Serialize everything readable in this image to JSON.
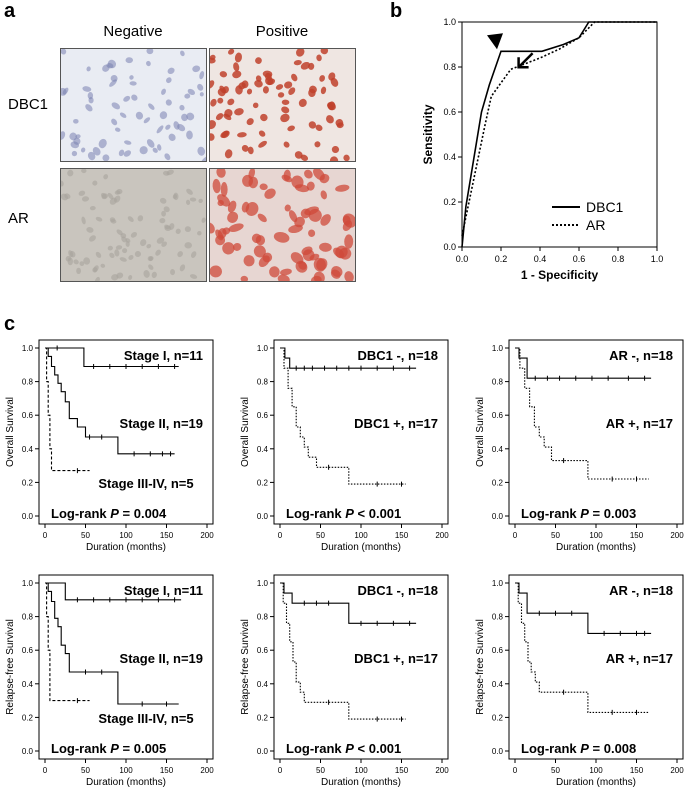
{
  "panels": {
    "a": {
      "letter": "a",
      "columns": [
        "Negative",
        "Positive"
      ],
      "rows": [
        "DBC1",
        "AR"
      ]
    },
    "b": {
      "letter": "b"
    },
    "c": {
      "letter": "c"
    }
  },
  "colors": {
    "negative_bg": "#e9ecf3",
    "negative_nuclei": "#7a82b0",
    "positive_bg": "#efe6e2",
    "positive_nuclei": "#c0412b",
    "ar_neg_bg": "#c9c5be",
    "ar_neg_cell": "#a8a49c",
    "ar_pos_bg": "#e7d6d2",
    "ar_pos_cell": "#cf4a3a"
  },
  "chart_data": [
    {
      "id": "roc",
      "type": "line",
      "xlabel": "1 - Specificity",
      "ylabel": "Sensitivity",
      "xlim": [
        0,
        1
      ],
      "ylim": [
        0,
        1
      ],
      "xticks": [
        "0.0",
        "0.2",
        "0.4",
        "0.6",
        "0.8",
        "1.0"
      ],
      "yticks": [
        "0.0",
        "0.2",
        "0.4",
        "0.6",
        "0.8",
        "1.0"
      ],
      "legend": "bottom-right",
      "series": [
        {
          "name": "DBC1",
          "style": "solid",
          "x": [
            0,
            0.02,
            0.1,
            0.14,
            0.2,
            0.41,
            0.52,
            0.6,
            0.65,
            1.0
          ],
          "y": [
            0,
            0.18,
            0.6,
            0.72,
            0.87,
            0.87,
            0.9,
            0.93,
            1.0,
            1.0
          ]
        },
        {
          "name": "AR",
          "style": "dotted",
          "x": [
            0,
            0.06,
            0.12,
            0.15,
            0.25,
            0.4,
            0.5,
            0.6,
            0.68,
            1.0
          ],
          "y": [
            0.05,
            0.3,
            0.55,
            0.67,
            0.79,
            0.84,
            0.88,
            0.93,
            1.0,
            1.0
          ]
        }
      ],
      "annotations": [
        "arrowhead DBC1",
        "arrow AR"
      ]
    },
    {
      "id": "os_stage",
      "type": "line",
      "xlabel": "Duration (months)",
      "ylabel": "Overall Survival",
      "xlim": [
        0,
        200
      ],
      "ylim": [
        0,
        1
      ],
      "xticks": [
        "0",
        "50",
        "100",
        "150",
        "200"
      ],
      "yticks": [
        "0.0",
        "0.2",
        "0.4",
        "0.6",
        "0.8",
        "1.0"
      ],
      "logrank_prefix": "Log-rank ",
      "logrank_p": "P",
      "logrank_val": " = 0.004",
      "series": [
        {
          "name": "Stage I, n=11",
          "style": "solid",
          "x": [
            0,
            48,
            48,
            165
          ],
          "y": [
            1.0,
            1.0,
            0.89,
            0.89
          ],
          "censor_x": [
            15,
            60,
            80,
            100,
            120,
            140,
            160
          ],
          "label_pos": "upper-right"
        },
        {
          "name": "Stage II, n=19",
          "style": "solid",
          "x": [
            0,
            4,
            8,
            12,
            16,
            20,
            25,
            30,
            40,
            50,
            60,
            90,
            100,
            160
          ],
          "y": [
            1.0,
            0.95,
            0.89,
            0.84,
            0.79,
            0.74,
            0.68,
            0.58,
            0.53,
            0.47,
            0.47,
            0.37,
            0.37,
            0.37
          ],
          "censor_x": [
            55,
            70,
            110,
            130,
            145,
            155
          ],
          "label_pos": "middle-right"
        },
        {
          "name": "Stage III-IV, n=5",
          "style": "dashed",
          "x": [
            0,
            2,
            4,
            6,
            8,
            55
          ],
          "y": [
            1.0,
            0.8,
            0.6,
            0.4,
            0.27,
            0.27
          ],
          "censor_x": [
            40
          ],
          "label_pos": "bottom-center"
        }
      ]
    },
    {
      "id": "os_dbc1",
      "type": "line",
      "xlabel": "Duration (months)",
      "ylabel": "Overall Survival",
      "xlim": [
        0,
        200
      ],
      "ylim": [
        0,
        1
      ],
      "xticks": [
        "0",
        "50",
        "100",
        "150",
        "200"
      ],
      "yticks": [
        "0.0",
        "0.2",
        "0.4",
        "0.6",
        "0.8",
        "1.0"
      ],
      "logrank_prefix": "Log-rank ",
      "logrank_p": "P",
      "logrank_val": " < 0.001",
      "series": [
        {
          "name": "DBC1 -, n=18",
          "style": "solid",
          "x": [
            0,
            6,
            6,
            12,
            12,
            168
          ],
          "y": [
            1.0,
            1.0,
            0.94,
            0.94,
            0.88,
            0.88
          ],
          "censor_x": [
            20,
            30,
            40,
            55,
            70,
            85,
            100,
            120,
            140,
            160
          ],
          "label_pos": "upper-right"
        },
        {
          "name": "DBC1 +, n=17",
          "style": "dotted",
          "x": [
            0,
            5,
            10,
            15,
            20,
            25,
            30,
            35,
            45,
            85,
            155
          ],
          "y": [
            1.0,
            0.88,
            0.76,
            0.65,
            0.53,
            0.47,
            0.41,
            0.35,
            0.29,
            0.19,
            0.19
          ],
          "censor_x": [
            60,
            120,
            150
          ],
          "label_pos": "middle-right"
        }
      ]
    },
    {
      "id": "os_ar",
      "type": "line",
      "xlabel": "Duration (months)",
      "ylabel": "Overall Survival",
      "xlim": [
        0,
        200
      ],
      "ylim": [
        0,
        1
      ],
      "xticks": [
        "0",
        "50",
        "100",
        "150",
        "200"
      ],
      "yticks": [
        "0.0",
        "0.2",
        "0.4",
        "0.6",
        "0.8",
        "1.0"
      ],
      "logrank_prefix": "Log-rank ",
      "logrank_p": "P",
      "logrank_val": " = 0.003",
      "series": [
        {
          "name": "AR -, n=18",
          "style": "solid",
          "x": [
            0,
            5,
            5,
            15,
            15,
            168
          ],
          "y": [
            1.0,
            1.0,
            0.94,
            0.94,
            0.82,
            0.82
          ],
          "censor_x": [
            25,
            40,
            55,
            75,
            95,
            115,
            140,
            160
          ],
          "label_pos": "upper-right"
        },
        {
          "name": "AR +, n=17",
          "style": "dotted",
          "x": [
            0,
            6,
            12,
            18,
            24,
            30,
            36,
            45,
            90,
            165
          ],
          "y": [
            1.0,
            0.88,
            0.76,
            0.65,
            0.53,
            0.47,
            0.41,
            0.33,
            0.22,
            0.22
          ],
          "censor_x": [
            60,
            120,
            150
          ],
          "label_pos": "middle-right"
        }
      ]
    },
    {
      "id": "rfs_stage",
      "type": "line",
      "xlabel": "Duration (months)",
      "ylabel": "Relapse-free Survival",
      "xlim": [
        0,
        200
      ],
      "ylim": [
        0,
        1
      ],
      "xticks": [
        "0",
        "50",
        "100",
        "150",
        "200"
      ],
      "yticks": [
        "0.0",
        "0.2",
        "0.4",
        "0.6",
        "0.8",
        "1.0"
      ],
      "logrank_prefix": "Log-rank ",
      "logrank_p": "P",
      "logrank_val": " = 0.005",
      "series": [
        {
          "name": "Stage I, n=11",
          "style": "solid",
          "x": [
            0,
            25,
            25,
            168
          ],
          "y": [
            1.0,
            1.0,
            0.9,
            0.9
          ],
          "censor_x": [
            40,
            60,
            80,
            100,
            120,
            140,
            160
          ],
          "label_pos": "upper-right"
        },
        {
          "name": "Stage II, n=19",
          "style": "solid",
          "x": [
            0,
            4,
            8,
            12,
            16,
            20,
            25,
            30,
            85,
            90,
            165
          ],
          "y": [
            1.0,
            0.95,
            0.89,
            0.79,
            0.74,
            0.63,
            0.58,
            0.47,
            0.47,
            0.28,
            0.28
          ],
          "censor_x": [
            50,
            70,
            120,
            150
          ],
          "label_pos": "middle-right"
        },
        {
          "name": "Stage III-IV, n=5",
          "style": "dashed",
          "x": [
            0,
            2,
            4,
            6,
            55
          ],
          "y": [
            1.0,
            0.8,
            0.6,
            0.3,
            0.3
          ],
          "censor_x": [
            40
          ],
          "label_pos": "bottom-center"
        }
      ]
    },
    {
      "id": "rfs_dbc1",
      "type": "line",
      "xlabel": "Duration (months)",
      "ylabel": "Relapse-free Survival",
      "xlim": [
        0,
        200
      ],
      "ylim": [
        0,
        1
      ],
      "xticks": [
        "0",
        "50",
        "100",
        "150",
        "200"
      ],
      "yticks": [
        "0.0",
        "0.2",
        "0.4",
        "0.6",
        "0.8",
        "1.0"
      ],
      "logrank_prefix": "Log-rank ",
      "logrank_p": "P",
      "logrank_val": " < 0.001",
      "series": [
        {
          "name": "DBC1 -, n=18",
          "style": "solid",
          "x": [
            0,
            5,
            5,
            15,
            15,
            85,
            85,
            168
          ],
          "y": [
            1.0,
            1.0,
            0.94,
            0.94,
            0.88,
            0.88,
            0.76,
            0.76
          ],
          "censor_x": [
            30,
            45,
            60,
            100,
            120,
            140,
            160
          ],
          "label_pos": "upper-right"
        },
        {
          "name": "DBC1 +, n=17",
          "style": "dotted",
          "x": [
            0,
            4,
            8,
            12,
            16,
            20,
            25,
            30,
            35,
            85,
            155
          ],
          "y": [
            1.0,
            0.88,
            0.76,
            0.65,
            0.53,
            0.41,
            0.35,
            0.29,
            0.29,
            0.19,
            0.19
          ],
          "censor_x": [
            60,
            120,
            150
          ],
          "label_pos": "middle-right"
        }
      ]
    },
    {
      "id": "rfs_ar",
      "type": "line",
      "xlabel": "Duration (months)",
      "ylabel": "Relapse-free Survival",
      "xlim": [
        0,
        200
      ],
      "ylim": [
        0,
        1
      ],
      "xticks": [
        "0",
        "50",
        "100",
        "150",
        "200"
      ],
      "yticks": [
        "0.0",
        "0.2",
        "0.4",
        "0.6",
        "0.8",
        "1.0"
      ],
      "logrank_prefix": "Log-rank ",
      "logrank_p": "P",
      "logrank_val": " = 0.008",
      "series": [
        {
          "name": "AR -, n=18",
          "style": "solid",
          "x": [
            0,
            5,
            5,
            15,
            15,
            90,
            90,
            168
          ],
          "y": [
            1.0,
            1.0,
            0.94,
            0.94,
            0.82,
            0.82,
            0.7,
            0.7
          ],
          "censor_x": [
            30,
            50,
            70,
            110,
            130,
            150,
            160
          ],
          "label_pos": "upper-right"
        },
        {
          "name": "AR +, n=17",
          "style": "dotted",
          "x": [
            0,
            4,
            8,
            12,
            16,
            20,
            25,
            30,
            40,
            90,
            165
          ],
          "y": [
            1.0,
            0.88,
            0.76,
            0.65,
            0.53,
            0.47,
            0.41,
            0.35,
            0.35,
            0.23,
            0.23
          ],
          "censor_x": [
            60,
            120,
            150
          ],
          "label_pos": "middle-right"
        }
      ]
    }
  ]
}
